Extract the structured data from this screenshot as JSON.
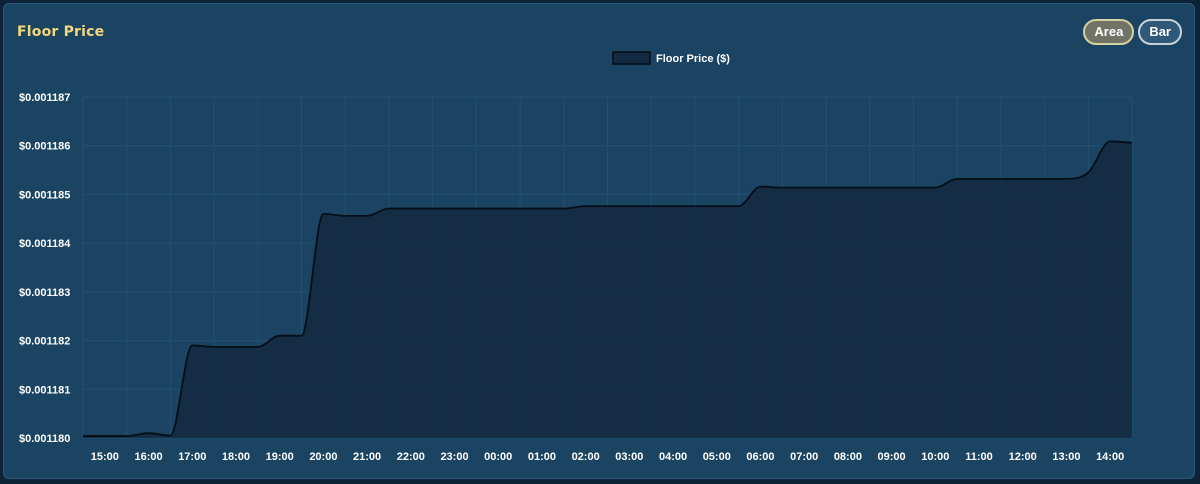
{
  "card": {
    "title": "Floor Price"
  },
  "toggle": {
    "area_label": "Area",
    "bar_label": "Bar",
    "active": "area"
  },
  "colors": {
    "area_fill": "#132b42",
    "line": "#050d16",
    "grid": "#24506f",
    "title": "#f4d77a"
  },
  "chart_data": {
    "type": "area",
    "legend": "top-center",
    "grid": true,
    "y_tick_prefix": "$",
    "ylim": [
      0.00118,
      0.001187
    ],
    "y_ticks": [
      "$0.001180",
      "$0.001181",
      "$0.001182",
      "$0.001183",
      "$0.001184",
      "$0.001185",
      "$0.001186",
      "$0.001187"
    ],
    "x_ticks": [
      "15:00",
      "16:00",
      "17:00",
      "18:00",
      "19:00",
      "20:00",
      "21:00",
      "22:00",
      "23:00",
      "00:00",
      "01:00",
      "02:00",
      "03:00",
      "04:00",
      "05:00",
      "06:00",
      "07:00",
      "08:00",
      "09:00",
      "10:00",
      "11:00",
      "12:00",
      "13:00",
      "14:00"
    ],
    "series": [
      {
        "name": "Floor Price ($)",
        "values": [
          0.00118004,
          0.00118004,
          0.00118004,
          0.0011801,
          0.00118005,
          0.0011819,
          0.00118187,
          0.00118187,
          0.00118187,
          0.0011821,
          0.0011821,
          0.0011846,
          0.00118456,
          0.00118456,
          0.00118471,
          0.00118471,
          0.00118471,
          0.00118471,
          0.00118471,
          0.00118471,
          0.00118471,
          0.00118471,
          0.00118471,
          0.00118476,
          0.00118476,
          0.00118476,
          0.00118476,
          0.00118476,
          0.00118476,
          0.00118476,
          0.00118476,
          0.00118516,
          0.00118514,
          0.00118514,
          0.00118514,
          0.00118514,
          0.00118514,
          0.00118514,
          0.00118514,
          0.00118514,
          0.00118532,
          0.00118532,
          0.00118532,
          0.00118532,
          0.00118532,
          0.00118532,
          0.00118545,
          0.00118609,
          0.00118606
        ]
      }
    ]
  }
}
